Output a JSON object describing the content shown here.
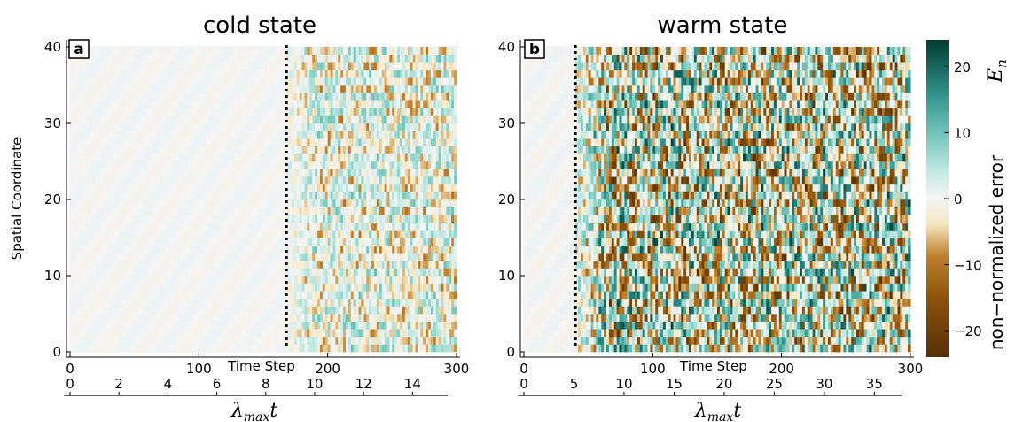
{
  "figure": {
    "colorbar": {
      "label": "non−normalized error",
      "symbol": "E",
      "symbol_sub": "n",
      "ticks": [
        20,
        10,
        0,
        -10,
        -20
      ],
      "tick_labels": [
        "20",
        "10",
        "0",
        "−10",
        "−20"
      ],
      "range": [
        -24,
        24
      ],
      "colors": {
        "neg_end": "#543005",
        "neg_mid": "#bf812d",
        "neutral_low": "#f6e8c3",
        "center": "#f5f5f5",
        "pos_low": "#c7eae5",
        "pos_mid": "#35978f",
        "pos_end": "#003c30"
      }
    },
    "y_axis_label": "Spatial Coordinate"
  },
  "chart_data": [
    {
      "type": "heatmap",
      "panel": "a",
      "title": "cold state",
      "xlabel": "Time Step",
      "ylabel": "Spatial Coordinate",
      "xlim": [
        0,
        300
      ],
      "ylim": [
        0,
        40
      ],
      "x_ticks": [
        0,
        100,
        200,
        300
      ],
      "y_ticks": [
        0,
        10,
        20,
        30,
        40
      ],
      "y_tick_labels": [
        "0",
        "10",
        "20",
        "30",
        "40"
      ],
      "x_tick_labels": [
        "0",
        "100",
        "200",
        "300"
      ],
      "secondary_axis": {
        "label": "λ",
        "label_sub": "max",
        "label_var": "t",
        "ticks": [
          0,
          2,
          4,
          6,
          8,
          10,
          12,
          14
        ],
        "tick_labels": [
          "0",
          "2",
          "4",
          "6",
          "8",
          "10",
          "12",
          "14"
        ],
        "max_value": 15.8
      },
      "divider_time_step": 168,
      "error_amplitude_before": 1.2,
      "error_amplitude_after": 9,
      "grid_steps": 150,
      "grid_rows": 40
    },
    {
      "type": "heatmap",
      "panel": "b",
      "title": "warm state",
      "xlabel": "Time Step",
      "ylabel": "",
      "xlim": [
        0,
        300
      ],
      "ylim": [
        0,
        40
      ],
      "x_ticks": [
        0,
        100,
        200,
        300
      ],
      "y_ticks": [
        0,
        10,
        20,
        30,
        40
      ],
      "y_tick_labels": [
        "0",
        "10",
        "20",
        "30",
        "40"
      ],
      "x_tick_labels": [
        "0",
        "100",
        "200",
        "300"
      ],
      "secondary_axis": {
        "label": "λ",
        "label_sub": "max",
        "label_var": "t",
        "ticks": [
          0,
          5,
          10,
          15,
          20,
          25,
          30,
          35
        ],
        "tick_labels": [
          "0",
          "5",
          "10",
          "15",
          "20",
          "25",
          "30",
          "35"
        ],
        "max_value": 38.6
      },
      "divider_time_step": 40,
      "error_amplitude_before": 1.5,
      "error_amplitude_after": 20,
      "grid_steps": 150,
      "grid_rows": 40
    }
  ]
}
